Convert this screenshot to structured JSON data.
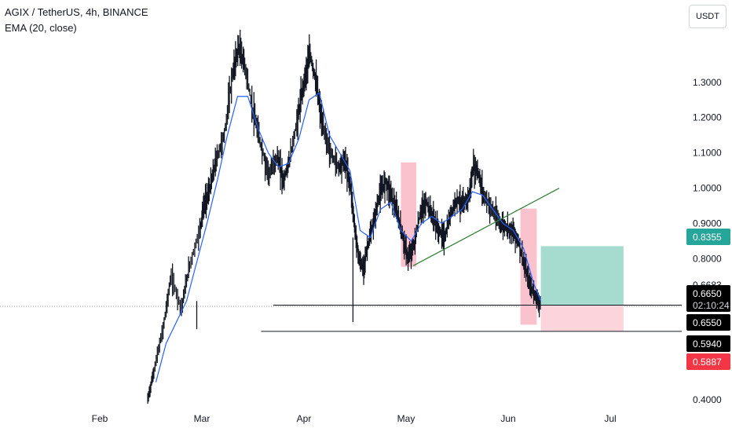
{
  "header": {
    "symbol_line": "AGIX / TetherUS, 4h, BINANCE",
    "indicator_line": "EMA (20, close)"
  },
  "currency_button": {
    "label": "USDT"
  },
  "colors": {
    "candles": "#131722",
    "ema": "#2962ff",
    "trendline": "#2e7d32",
    "highlight": "#f8bbc6",
    "take_profit": "#a5dccf",
    "stop_loss": "#fcd5dc",
    "tag_green": "#26a69a",
    "tag_red": "#f23645",
    "tag_black": "#000000"
  },
  "chart_data": {
    "type": "candlestick",
    "title": "AGIX / TetherUS, 4h, BINANCE",
    "indicator": "EMA (20, close)",
    "x_labels": [
      "Feb",
      "Mar",
      "Apr",
      "May",
      "Jun",
      "Jul"
    ],
    "y_ticks": [
      "1.3000",
      "1.2000",
      "1.1000",
      "1.0000",
      "0.9000",
      "0.8000",
      "0.4000"
    ],
    "ylim": [
      0.38,
      1.42
    ],
    "price_tags": [
      {
        "label": "0.8355",
        "value": 0.8355,
        "style": "green"
      },
      {
        "label": "0.6683",
        "value": 0.6683,
        "style": "plain"
      },
      {
        "label": "0.6650",
        "value": 0.665,
        "style": "black",
        "countdown": "02:10:24"
      },
      {
        "label": "0.6550",
        "value": 0.655,
        "style": "black"
      },
      {
        "label": "0.5940",
        "value": 0.594,
        "style": "black"
      },
      {
        "label": "0.5887",
        "value": 0.5887,
        "style": "red"
      }
    ],
    "price_path": [
      [
        0.47,
        0.4
      ],
      [
        0.53,
        0.48
      ],
      [
        0.62,
        0.6
      ],
      [
        0.7,
        0.75
      ],
      [
        0.8,
        0.66
      ],
      [
        0.88,
        0.78
      ],
      [
        0.98,
        0.88
      ],
      [
        1.02,
        0.95
      ],
      [
        1.08,
        1.0
      ],
      [
        1.14,
        1.08
      ],
      [
        1.22,
        1.15
      ],
      [
        1.3,
        1.32
      ],
      [
        1.36,
        1.4
      ],
      [
        1.42,
        1.35
      ],
      [
        1.5,
        1.22
      ],
      [
        1.58,
        1.12
      ],
      [
        1.66,
        1.04
      ],
      [
        1.74,
        1.09
      ],
      [
        1.8,
        1.02
      ],
      [
        1.86,
        1.08
      ],
      [
        1.94,
        1.2
      ],
      [
        2.0,
        1.3
      ],
      [
        2.06,
        1.38
      ],
      [
        2.12,
        1.3
      ],
      [
        2.18,
        1.18
      ],
      [
        2.26,
        1.1
      ],
      [
        2.34,
        1.06
      ],
      [
        2.4,
        1.08
      ],
      [
        2.46,
        1.0
      ],
      [
        2.5,
        0.88
      ],
      [
        2.54,
        0.8
      ],
      [
        2.58,
        0.77
      ],
      [
        2.62,
        0.83
      ],
      [
        2.68,
        0.9
      ],
      [
        2.74,
        0.98
      ],
      [
        2.8,
        1.02
      ],
      [
        2.86,
        0.98
      ],
      [
        2.92,
        0.92
      ],
      [
        2.97,
        0.86
      ],
      [
        3.02,
        0.8
      ],
      [
        3.08,
        0.84
      ],
      [
        3.14,
        0.93
      ],
      [
        3.2,
        0.96
      ],
      [
        3.26,
        0.92
      ],
      [
        3.32,
        0.88
      ],
      [
        3.38,
        0.86
      ],
      [
        3.44,
        0.93
      ],
      [
        3.5,
        0.97
      ],
      [
        3.56,
        0.95
      ],
      [
        3.62,
        0.98
      ],
      [
        3.66,
        1.06
      ],
      [
        3.7,
        1.05
      ],
      [
        3.76,
        0.98
      ],
      [
        3.84,
        0.94
      ],
      [
        3.92,
        0.9
      ],
      [
        3.98,
        0.89
      ],
      [
        4.04,
        0.88
      ],
      [
        4.1,
        0.85
      ],
      [
        4.16,
        0.78
      ],
      [
        4.22,
        0.72
      ],
      [
        4.28,
        0.69
      ],
      [
        4.32,
        0.665
      ]
    ],
    "ema_path": [
      [
        0.55,
        0.45
      ],
      [
        0.65,
        0.56
      ],
      [
        0.75,
        0.62
      ],
      [
        0.85,
        0.68
      ],
      [
        0.95,
        0.79
      ],
      [
        1.05,
        0.9
      ],
      [
        1.15,
        1.02
      ],
      [
        1.25,
        1.15
      ],
      [
        1.35,
        1.26
      ],
      [
        1.45,
        1.26
      ],
      [
        1.55,
        1.17
      ],
      [
        1.65,
        1.1
      ],
      [
        1.75,
        1.06
      ],
      [
        1.85,
        1.07
      ],
      [
        1.95,
        1.14
      ],
      [
        2.05,
        1.25
      ],
      [
        2.15,
        1.27
      ],
      [
        2.25,
        1.15
      ],
      [
        2.35,
        1.1
      ],
      [
        2.45,
        1.05
      ],
      [
        2.55,
        0.88
      ],
      [
        2.65,
        0.86
      ],
      [
        2.75,
        0.94
      ],
      [
        2.85,
        0.96
      ],
      [
        2.95,
        0.88
      ],
      [
        3.05,
        0.85
      ],
      [
        3.15,
        0.9
      ],
      [
        3.25,
        0.92
      ],
      [
        3.35,
        0.9
      ],
      [
        3.45,
        0.92
      ],
      [
        3.55,
        0.94
      ],
      [
        3.65,
        0.99
      ],
      [
        3.75,
        0.98
      ],
      [
        3.85,
        0.94
      ],
      [
        3.95,
        0.9
      ],
      [
        4.05,
        0.88
      ],
      [
        4.15,
        0.83
      ],
      [
        4.25,
        0.73
      ],
      [
        4.32,
        0.68
      ]
    ],
    "highlight_boxes": [
      {
        "x": [
          2.95,
          3.1
        ],
        "y": [
          0.777,
          1.073
        ]
      },
      {
        "x": [
          4.12,
          4.28
        ],
        "y": [
          0.613,
          0.942
        ]
      }
    ],
    "trendline": {
      "x": [
        3.07,
        4.5
      ],
      "y": [
        0.78,
        1.0
      ]
    },
    "horizontal_levels": [
      {
        "x": [
          1.7,
          5.4
        ],
        "value": 0.6683
      },
      {
        "x": [
          1.58,
          5.4
        ],
        "value": 0.594
      }
    ],
    "position": {
      "x": [
        4.32,
        5.13
      ],
      "take_profit": 0.8355,
      "entry": 0.6683,
      "stop": 0.594
    }
  }
}
